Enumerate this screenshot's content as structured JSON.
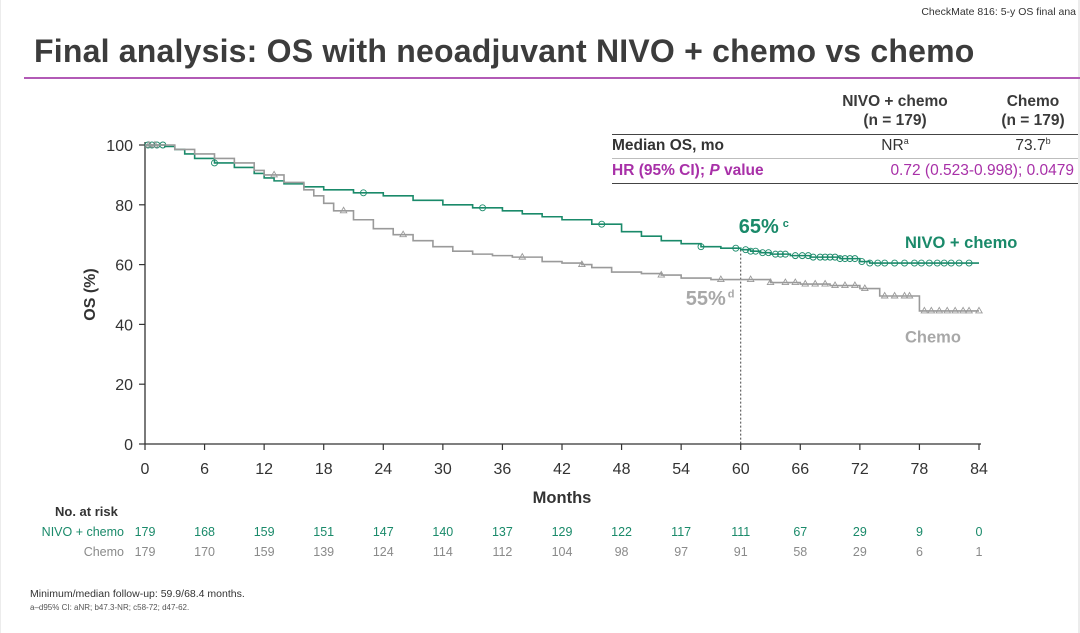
{
  "slide_tag": "CheckMate 816: 5-y OS final ana",
  "title": "Final analysis: OS with neoadjuvant NIVO + chemo vs chemo",
  "stats_table": {
    "col1_line1": "NIVO + chemo",
    "col1_line2": "(n = 179)",
    "col2_line1": "Chemo",
    "col2_line2": "(n = 179)",
    "row1_label": "Median OS, mo",
    "row1_nivo": "NR",
    "row1_nivo_sup": "a",
    "row1_chemo": "73.7",
    "row1_chemo_sup": "b",
    "row2_label_pre": "HR (95% CI); ",
    "row2_label_p": "P",
    "row2_label_post": " value",
    "row2_value": "0.72 (0.523-0.998); 0.0479"
  },
  "colors": {
    "nivo": "#1a8a6a",
    "chemo": "#9a9a9a",
    "accent": "#a830a8",
    "rule": "#b25ab6"
  },
  "chart_data": {
    "type": "line",
    "subtype": "kaplan-meier step curve",
    "xlabel": "Months",
    "ylabel": "OS (%)",
    "xlim": [
      0,
      84
    ],
    "ylim": [
      0,
      100
    ],
    "xticks": [
      0,
      6,
      12,
      18,
      24,
      30,
      36,
      42,
      48,
      54,
      60,
      66,
      72,
      78,
      84
    ],
    "yticks": [
      0,
      20,
      40,
      60,
      80,
      100
    ],
    "grid": false,
    "reference_line_x": 60,
    "series": [
      {
        "name": "NIVO + chemo",
        "censor_marker": "circle",
        "end_label": "NIVO + chemo",
        "annotation": {
          "x": 60,
          "text": "65%",
          "sup": "c"
        },
        "points": [
          [
            0,
            100
          ],
          [
            1,
            100
          ],
          [
            2,
            99.5
          ],
          [
            3,
            98.5
          ],
          [
            4,
            97
          ],
          [
            5,
            95.5
          ],
          [
            7,
            94
          ],
          [
            9,
            92.5
          ],
          [
            11,
            90.5
          ],
          [
            12,
            89
          ],
          [
            13,
            88
          ],
          [
            14,
            87
          ],
          [
            16,
            86
          ],
          [
            18,
            85
          ],
          [
            21,
            84
          ],
          [
            24,
            83
          ],
          [
            27,
            81.5
          ],
          [
            30,
            80
          ],
          [
            33,
            79
          ],
          [
            36,
            78
          ],
          [
            38,
            77
          ],
          [
            40,
            76
          ],
          [
            42,
            75
          ],
          [
            45,
            73.5
          ],
          [
            48,
            71
          ],
          [
            50,
            69.5
          ],
          [
            52,
            68
          ],
          [
            54,
            67
          ],
          [
            56,
            66
          ],
          [
            58,
            65.5
          ],
          [
            60,
            65
          ],
          [
            61,
            64.5
          ],
          [
            62,
            64
          ],
          [
            63,
            63.5
          ],
          [
            65,
            63
          ],
          [
            67,
            62.5
          ],
          [
            68,
            62.5
          ],
          [
            70,
            62
          ],
          [
            71,
            62
          ],
          [
            72,
            61
          ],
          [
            73,
            60.5
          ],
          [
            76,
            60.5
          ],
          [
            80,
            60.5
          ],
          [
            84,
            60.5
          ]
        ],
        "censored_at": [
          0.3,
          0.7,
          1.2,
          1.8,
          7,
          22,
          34,
          46,
          56,
          59.5,
          60.5,
          61,
          61.5,
          62.2,
          62.8,
          63.5,
          64,
          64.5,
          65.5,
          66.2,
          66.8,
          67.3,
          68,
          68.5,
          69,
          69.5,
          70,
          70.5,
          71,
          71.5,
          72.2,
          73,
          73.8,
          74.5,
          75.5,
          76.5,
          77.5,
          78.2,
          79,
          79.8,
          80.5,
          81.2,
          82,
          83
        ]
      },
      {
        "name": "Chemo",
        "censor_marker": "triangle",
        "end_label": "Chemo",
        "annotation": {
          "x": 60,
          "text": "55%",
          "sup": "d"
        },
        "points": [
          [
            0,
            100
          ],
          [
            1,
            100
          ],
          [
            3,
            98.5
          ],
          [
            5,
            97
          ],
          [
            7,
            95.5
          ],
          [
            9,
            94
          ],
          [
            11,
            91.5
          ],
          [
            12,
            90
          ],
          [
            14,
            87.5
          ],
          [
            16,
            85
          ],
          [
            17,
            83
          ],
          [
            18,
            80.5
          ],
          [
            19,
            78
          ],
          [
            21,
            75
          ],
          [
            23,
            72
          ],
          [
            25,
            70
          ],
          [
            27,
            68
          ],
          [
            29,
            66
          ],
          [
            31,
            64.5
          ],
          [
            33,
            63.5
          ],
          [
            35,
            63
          ],
          [
            37,
            62.5
          ],
          [
            40,
            61
          ],
          [
            42,
            60.5
          ],
          [
            44,
            60
          ],
          [
            45,
            59
          ],
          [
            47,
            57.5
          ],
          [
            50,
            57
          ],
          [
            52,
            56.5
          ],
          [
            54,
            55.5
          ],
          [
            57,
            55
          ],
          [
            60,
            55
          ],
          [
            63,
            54
          ],
          [
            66,
            53.5
          ],
          [
            69,
            53
          ],
          [
            72,
            52
          ],
          [
            73,
            52
          ],
          [
            74,
            49.5
          ],
          [
            76,
            49.5
          ],
          [
            78,
            44.5
          ],
          [
            84,
            44.5
          ]
        ],
        "censored_at": [
          0.4,
          1,
          13,
          20,
          26,
          38,
          44,
          52,
          58,
          61,
          63,
          64.5,
          65.5,
          66.5,
          67.5,
          68.5,
          69.5,
          70.5,
          71.5,
          72.5,
          74.5,
          75.5,
          76.5,
          77,
          78.5,
          79.2,
          80,
          80.8,
          81.6,
          82.4,
          83,
          84
        ]
      }
    ]
  },
  "risk_table": {
    "title": "No. at risk",
    "rows": [
      {
        "label": "NIVO + chemo",
        "values": [
          "179",
          "168",
          "159",
          "151",
          "147",
          "140",
          "137",
          "129",
          "122",
          "117",
          "111",
          "67",
          "29",
          "9",
          "0"
        ]
      },
      {
        "label": "Chemo",
        "values": [
          "179",
          "170",
          "159",
          "139",
          "124",
          "114",
          "112",
          "104",
          "98",
          "97",
          "91",
          "58",
          "29",
          "6",
          "1"
        ]
      }
    ]
  },
  "footnotes": {
    "line1": "Minimum/median follow-up: 59.9/68.4 months.",
    "line2": "a–d95% CI: aNR; b47.3-NR; c58-72; d47-62."
  }
}
